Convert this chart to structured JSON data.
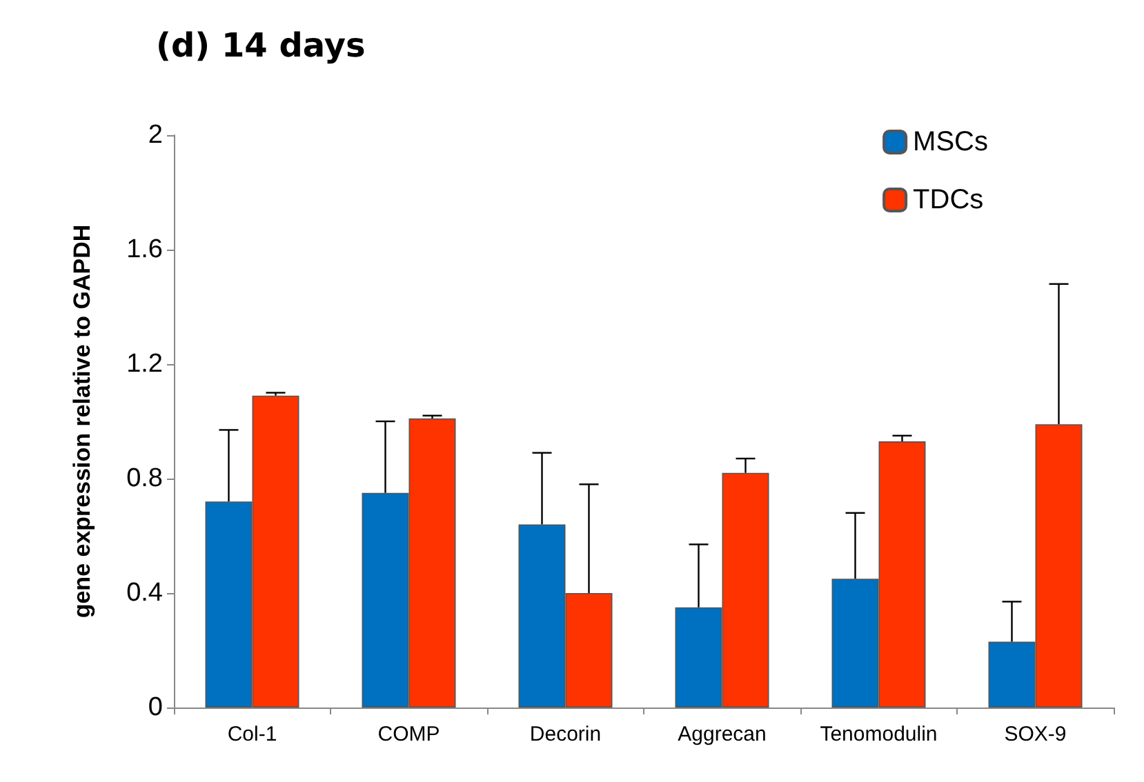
{
  "chart_data": {
    "type": "bar",
    "title": "(d) 14 days",
    "ylabel": "gene expression relative to GAPDH",
    "categories": [
      "Col-1",
      "COMP",
      "Decorin",
      "Aggrecan",
      "Tenomodulin",
      "SOX-9"
    ],
    "series": [
      {
        "name": "MSCs",
        "color": "#0070c0",
        "values": [
          0.72,
          0.75,
          0.64,
          0.35,
          0.45,
          0.23
        ],
        "errors": [
          [
            0.72,
            0.97
          ],
          [
            0.75,
            1.0
          ],
          [
            0.64,
            0.89
          ],
          [
            0.35,
            0.57
          ],
          [
            0.45,
            0.68
          ],
          [
            0.23,
            0.37
          ]
        ]
      },
      {
        "name": "TDCs",
        "color": "#ff3300",
        "values": [
          1.09,
          1.01,
          0.4,
          0.82,
          0.93,
          0.99
        ],
        "errors": [
          [
            1.09,
            1.1
          ],
          [
            1.01,
            1.02
          ],
          [
            0.4,
            0.78
          ],
          [
            0.82,
            0.87
          ],
          [
            0.93,
            0.95
          ],
          [
            0.99,
            1.48
          ]
        ]
      }
    ],
    "ylim": [
      0,
      2
    ],
    "yticks": [
      0,
      0.4,
      0.8,
      1.2,
      1.6,
      2
    ],
    "grid": false,
    "legend": "top right"
  }
}
